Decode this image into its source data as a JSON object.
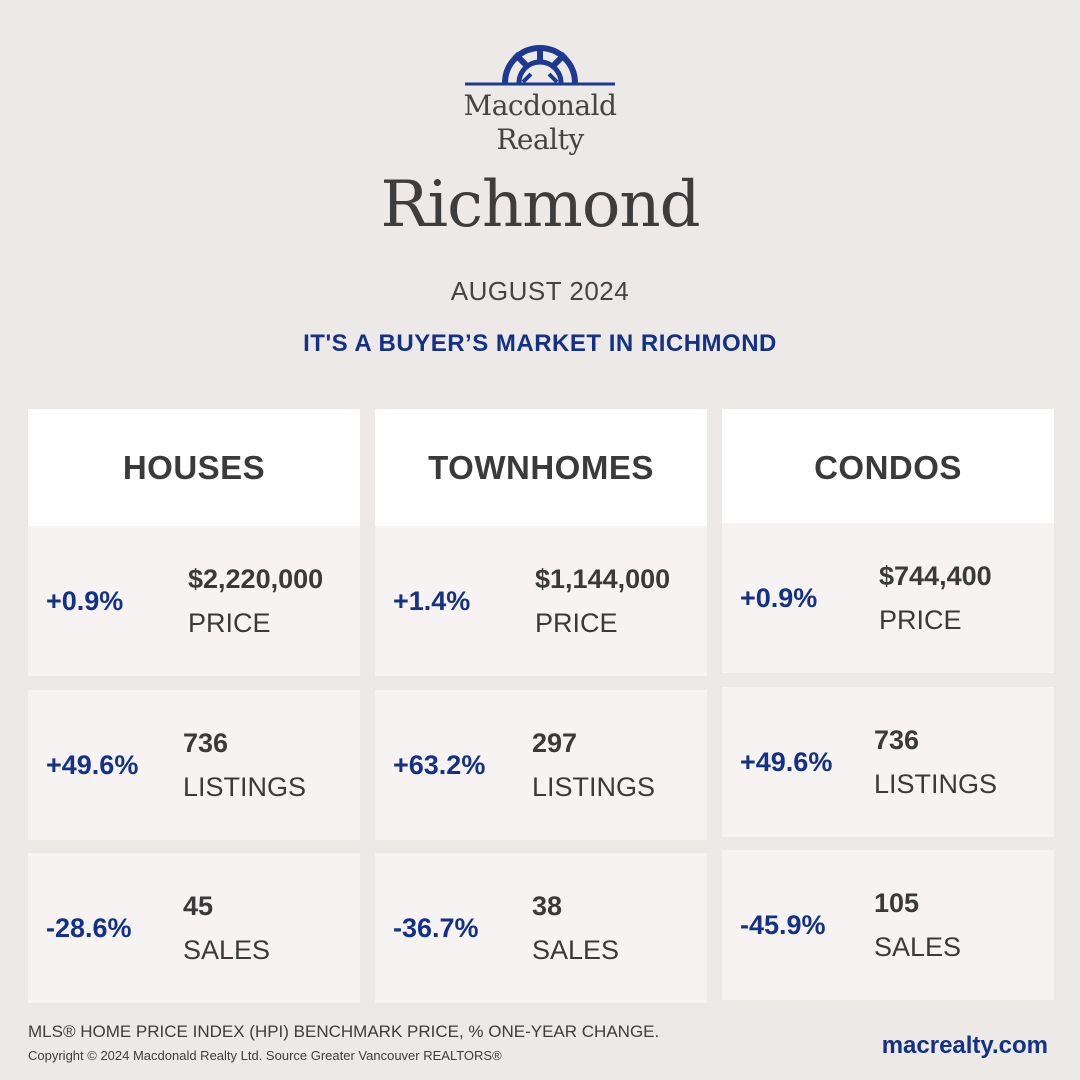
{
  "brand": {
    "line1": "Macdonald",
    "line2": "Realty",
    "logo_icon": "sunburst-arch-logo",
    "color": "#1d3a8f"
  },
  "city": "Richmond",
  "period": "AUGUST 2024",
  "headline": "IT'S A BUYER’S MARKET IN RICHMOND",
  "accent_color": "#123187",
  "columns": [
    {
      "title": "HOUSES",
      "stats": [
        {
          "change": "+0.9%",
          "value": "$2,220,000",
          "label": "PRICE"
        },
        {
          "change": "+49.6%",
          "value": "736",
          "label": "LISTINGS"
        },
        {
          "change": "-28.6%",
          "value": "45",
          "label": "SALES"
        }
      ]
    },
    {
      "title": "TOWNHOMES",
      "stats": [
        {
          "change": "+1.4%",
          "value": "$1,144,000",
          "label": "PRICE"
        },
        {
          "change": "+63.2%",
          "value": "297",
          "label": "LISTINGS"
        },
        {
          "change": "-36.7%",
          "value": "38",
          "label": "SALES"
        }
      ]
    },
    {
      "title": "CONDOS",
      "stats": [
        {
          "change": "+0.9%",
          "value": "$744,400",
          "label": "PRICE"
        },
        {
          "change": "+49.6%",
          "value": "736",
          "label": "LISTINGS"
        },
        {
          "change": "-45.9%",
          "value": "105",
          "label": "SALES"
        }
      ]
    }
  ],
  "footer": {
    "note": "MLS® HOME PRICE INDEX (HPI) BENCHMARK PRICE, % ONE-YEAR CHANGE.",
    "copyright": "Copyright © 2024 Macdonald Realty Ltd. Source Greater Vancouver REALTORS®",
    "website": "macrealty.com"
  }
}
